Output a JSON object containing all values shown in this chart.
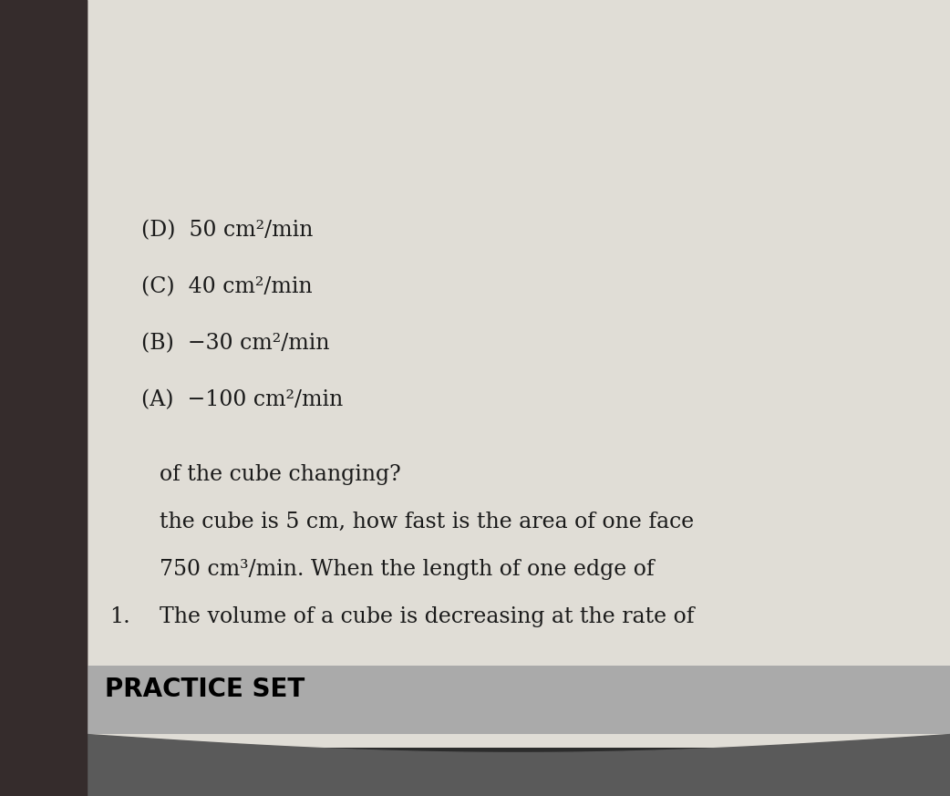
{
  "bg_outer": "#5a5a5a",
  "bg_page": "#e0ddd6",
  "header_bg": "#aaaaaa",
  "header_text": "PRACTICE SET",
  "header_text_color": "#000000",
  "question_number": "1.",
  "question_line1": "The volume of a cube is decreasing at the rate of",
  "question_line2": "750 cm³/min. When the length of one edge of",
  "question_line3": "the cube is 5 cm, how fast is the area of one face",
  "question_line4": "of the cube changing?",
  "options": [
    "(A)  −100 cm²/min",
    "(B)  −30 cm²/min",
    "(C)  40 cm²/min",
    "(D)  50 cm²/min"
  ],
  "text_color": "#1a1a1a",
  "font_size_header": 20,
  "font_size_question": 17,
  "font_size_options": 17,
  "fig_width": 10.42,
  "fig_height": 8.73
}
